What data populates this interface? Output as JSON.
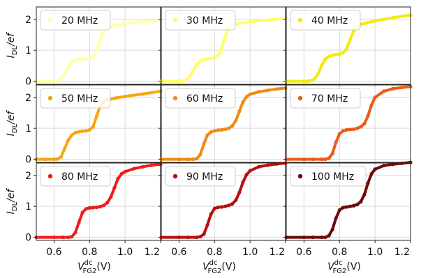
{
  "figure": {
    "type": "line",
    "grid": true,
    "legend_position": "top-left",
    "ylabel_html": [
      "I",
      "DL",
      "/ef"
    ],
    "xlabel_html": [
      "V",
      "dc",
      "FG2",
      "(V)"
    ],
    "x_ticks": [
      "0.6",
      "0.8",
      "1.0",
      "1.2"
    ],
    "x_ticks_first_row_left": "1.2",
    "y_ticks": [
      "0",
      "1",
      "2"
    ],
    "xlim": [
      0.5,
      1.2
    ],
    "ylim": [
      -0.1,
      2.4
    ]
  },
  "chart_data": [
    {
      "type": "line",
      "title": "",
      "series": [
        {
          "name": "20 MHz",
          "color": "#ffffa8",
          "x": [
            0.5,
            0.55,
            0.6,
            0.62,
            0.64,
            0.66,
            0.68,
            0.7,
            0.72,
            0.74,
            0.76,
            0.78,
            0.8,
            0.82,
            0.84,
            0.86,
            0.88,
            0.9,
            0.95,
            1.0,
            1.1,
            1.2
          ],
          "y": [
            0.0,
            0.0,
            0.0,
            0.02,
            0.08,
            0.25,
            0.48,
            0.62,
            0.68,
            0.7,
            0.71,
            0.72,
            0.74,
            0.8,
            1.0,
            1.35,
            1.62,
            1.75,
            1.82,
            1.86,
            1.92,
            1.98
          ]
        }
      ]
    },
    {
      "type": "line",
      "title": "",
      "series": [
        {
          "name": "30 MHz",
          "color": "#ffff66",
          "x": [
            0.5,
            0.55,
            0.6,
            0.62,
            0.64,
            0.66,
            0.68,
            0.7,
            0.72,
            0.74,
            0.76,
            0.78,
            0.8,
            0.82,
            0.84,
            0.86,
            0.88,
            0.9,
            0.95,
            1.0,
            1.1,
            1.2
          ],
          "y": [
            0.0,
            0.0,
            0.0,
            0.01,
            0.05,
            0.15,
            0.35,
            0.55,
            0.65,
            0.7,
            0.72,
            0.74,
            0.76,
            0.82,
            1.05,
            1.45,
            1.72,
            1.82,
            1.88,
            1.92,
            1.98,
            2.03
          ]
        }
      ]
    },
    {
      "type": "line",
      "title": "",
      "series": [
        {
          "name": "40 MHz",
          "color": "#f2ea12",
          "x": [
            0.5,
            0.55,
            0.6,
            0.62,
            0.64,
            0.66,
            0.68,
            0.7,
            0.72,
            0.74,
            0.76,
            0.78,
            0.8,
            0.82,
            0.84,
            0.86,
            0.88,
            0.9,
            0.92,
            0.95,
            1.0,
            1.1,
            1.2
          ],
          "y": [
            0.0,
            0.0,
            0.0,
            0.0,
            0.02,
            0.08,
            0.25,
            0.52,
            0.72,
            0.8,
            0.84,
            0.86,
            0.88,
            0.92,
            1.05,
            1.35,
            1.62,
            1.78,
            1.84,
            1.88,
            1.95,
            2.05,
            2.14
          ]
        }
      ]
    },
    {
      "type": "line",
      "title": "",
      "series": [
        {
          "name": "50 MHz",
          "color": "#f5a70e",
          "x": [
            0.5,
            0.55,
            0.6,
            0.62,
            0.64,
            0.66,
            0.68,
            0.7,
            0.72,
            0.74,
            0.76,
            0.78,
            0.8,
            0.82,
            0.84,
            0.86,
            0.88,
            0.9,
            0.92,
            0.95,
            1.0,
            1.1,
            1.2
          ],
          "y": [
            0.0,
            0.0,
            0.0,
            0.01,
            0.08,
            0.35,
            0.62,
            0.78,
            0.86,
            0.89,
            0.91,
            0.92,
            0.95,
            1.05,
            1.4,
            1.72,
            1.88,
            1.92,
            1.95,
            1.98,
            2.03,
            2.11,
            2.2
          ]
        }
      ]
    },
    {
      "type": "line",
      "title": "",
      "series": [
        {
          "name": "60 MHz",
          "color": "#f08a16",
          "x": [
            0.5,
            0.6,
            0.65,
            0.68,
            0.7,
            0.72,
            0.74,
            0.76,
            0.78,
            0.8,
            0.82,
            0.84,
            0.86,
            0.88,
            0.9,
            0.92,
            0.94,
            0.96,
            0.98,
            1.0,
            1.05,
            1.1,
            1.15,
            1.2
          ],
          "y": [
            0.0,
            0.0,
            0.0,
            0.0,
            0.02,
            0.15,
            0.5,
            0.78,
            0.88,
            0.92,
            0.94,
            0.95,
            0.97,
            1.0,
            1.08,
            1.25,
            1.55,
            1.85,
            2.02,
            2.1,
            2.18,
            2.23,
            2.27,
            2.3
          ]
        }
      ]
    },
    {
      "type": "line",
      "title": "",
      "series": [
        {
          "name": "70 MHz",
          "color": "#ed5b16",
          "x": [
            0.5,
            0.6,
            0.65,
            0.7,
            0.72,
            0.74,
            0.76,
            0.78,
            0.8,
            0.82,
            0.84,
            0.86,
            0.88,
            0.9,
            0.92,
            0.94,
            0.96,
            0.98,
            1.0,
            1.05,
            1.1,
            1.15,
            1.2
          ],
          "y": [
            0.0,
            0.0,
            0.0,
            0.0,
            0.0,
            0.03,
            0.18,
            0.55,
            0.82,
            0.92,
            0.95,
            0.96,
            0.97,
            1.0,
            1.05,
            1.15,
            1.4,
            1.75,
            2.0,
            2.2,
            2.28,
            2.32,
            2.35
          ]
        }
      ]
    },
    {
      "type": "line",
      "title": "",
      "series": [
        {
          "name": "80 MHz",
          "color": "#ee1d1d",
          "x": [
            0.5,
            0.6,
            0.65,
            0.68,
            0.7,
            0.72,
            0.74,
            0.76,
            0.78,
            0.8,
            0.82,
            0.84,
            0.86,
            0.88,
            0.9,
            0.92,
            0.94,
            0.96,
            0.98,
            1.0,
            1.05,
            1.1,
            1.15,
            1.2
          ],
          "y": [
            0.0,
            0.0,
            0.0,
            0.0,
            0.02,
            0.15,
            0.48,
            0.8,
            0.92,
            0.95,
            0.96,
            0.97,
            0.99,
            1.03,
            1.12,
            1.3,
            1.6,
            1.9,
            2.05,
            2.12,
            2.22,
            2.28,
            2.33,
            2.36
          ]
        }
      ]
    },
    {
      "type": "line",
      "title": "",
      "series": [
        {
          "name": "90 MHz",
          "color": "#b51010",
          "x": [
            0.5,
            0.6,
            0.65,
            0.7,
            0.72,
            0.74,
            0.76,
            0.78,
            0.8,
            0.82,
            0.84,
            0.86,
            0.88,
            0.9,
            0.92,
            0.94,
            0.96,
            0.98,
            1.0,
            1.05,
            1.1,
            1.15,
            1.2
          ],
          "y": [
            0.0,
            0.0,
            0.0,
            0.0,
            0.02,
            0.1,
            0.4,
            0.75,
            0.93,
            0.97,
            0.98,
            1.0,
            1.03,
            1.08,
            1.2,
            1.45,
            1.78,
            2.02,
            2.15,
            2.28,
            2.33,
            2.37,
            2.4
          ]
        }
      ]
    },
    {
      "type": "line",
      "title": "",
      "series": [
        {
          "name": "100 MHz",
          "color": "#6e0a0a",
          "x": [
            0.5,
            0.6,
            0.65,
            0.7,
            0.72,
            0.74,
            0.76,
            0.78,
            0.8,
            0.82,
            0.84,
            0.86,
            0.88,
            0.9,
            0.92,
            0.94,
            0.96,
            0.98,
            1.0,
            1.05,
            1.1,
            1.15,
            1.2
          ],
          "y": [
            0.0,
            0.0,
            0.0,
            0.0,
            0.0,
            0.05,
            0.25,
            0.62,
            0.88,
            0.96,
            0.98,
            1.0,
            1.02,
            1.06,
            1.15,
            1.38,
            1.75,
            2.05,
            2.2,
            2.32,
            2.36,
            2.39,
            2.42
          ]
        }
      ]
    }
  ]
}
